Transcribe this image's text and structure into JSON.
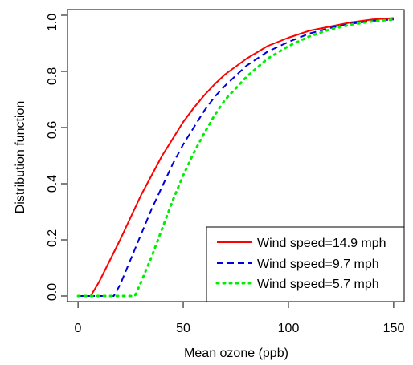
{
  "chart_data": {
    "type": "line",
    "title": "",
    "xlabel": "Mean ozone (ppb)",
    "ylabel": "Distribution function",
    "xlim": [
      -5,
      155
    ],
    "ylim": [
      -0.02,
      1.02
    ],
    "xticks": [
      0,
      50,
      100,
      150
    ],
    "yticks": [
      0.0,
      0.2,
      0.4,
      0.6,
      0.8,
      1.0
    ],
    "xtick_labels": [
      "0",
      "50",
      "100",
      "150"
    ],
    "ytick_labels": [
      "0.0",
      "0.2",
      "0.4",
      "0.6",
      "0.8",
      "1.0"
    ],
    "grid": false,
    "legend_position": "bottom-right",
    "series": [
      {
        "name": "Wind speed=14.9 mph",
        "color": "#ff0000",
        "line_style": "solid",
        "x": [
          0,
          6,
          10,
          15,
          20,
          25,
          30,
          35,
          40,
          45,
          50,
          55,
          60,
          65,
          70,
          80,
          90,
          100,
          110,
          120,
          130,
          140,
          150
        ],
        "y": [
          0.0,
          0.0,
          0.05,
          0.125,
          0.2,
          0.28,
          0.36,
          0.43,
          0.5,
          0.56,
          0.62,
          0.67,
          0.715,
          0.755,
          0.79,
          0.845,
          0.89,
          0.92,
          0.945,
          0.96,
          0.975,
          0.985,
          0.99
        ]
      },
      {
        "name": "Wind speed=9.7 mph",
        "color": "#0000dd",
        "line_style": "dashed",
        "x": [
          0,
          17,
          20,
          25,
          30,
          35,
          40,
          45,
          50,
          55,
          60,
          65,
          70,
          80,
          90,
          100,
          110,
          120,
          130,
          140,
          150
        ],
        "y": [
          0.0,
          0.0,
          0.04,
          0.13,
          0.22,
          0.31,
          0.39,
          0.47,
          0.54,
          0.6,
          0.66,
          0.71,
          0.75,
          0.82,
          0.87,
          0.905,
          0.935,
          0.955,
          0.97,
          0.98,
          0.985
        ]
      },
      {
        "name": "Wind speed=5.7 mph",
        "color": "#00ee00",
        "line_style": "dotted",
        "x": [
          0,
          27,
          30,
          35,
          40,
          45,
          50,
          55,
          60,
          65,
          70,
          80,
          90,
          100,
          110,
          120,
          130,
          140,
          150
        ],
        "y": [
          0.0,
          0.0,
          0.05,
          0.14,
          0.24,
          0.34,
          0.43,
          0.51,
          0.58,
          0.645,
          0.7,
          0.78,
          0.845,
          0.89,
          0.925,
          0.95,
          0.967,
          0.978,
          0.985
        ]
      }
    ]
  }
}
